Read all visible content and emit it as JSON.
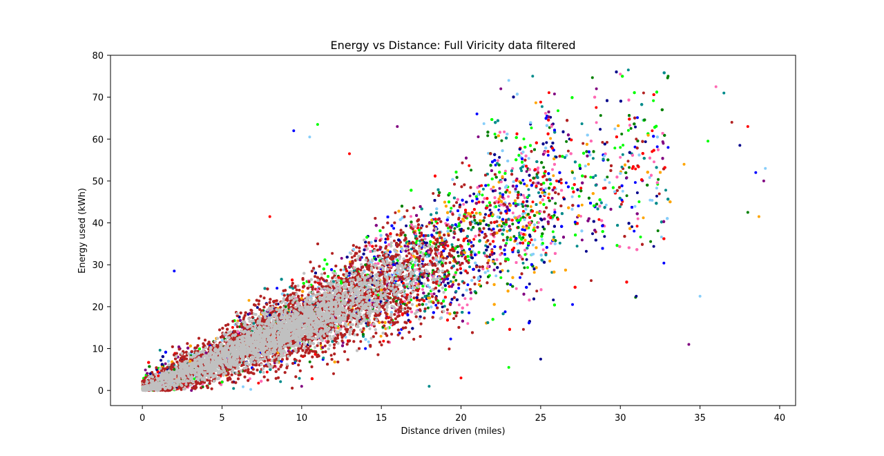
{
  "chart_data": {
    "type": "scatter",
    "title": "Energy vs Distance: Full Viricity data filtered",
    "xlabel": "Distance driven (miles)",
    "ylabel": "Energy used (kWh)",
    "xlim": [
      -2,
      41
    ],
    "ylim": [
      -3.6,
      80
    ],
    "xticks": [
      0,
      5,
      10,
      15,
      20,
      25,
      30,
      35,
      40
    ],
    "yticks": [
      0,
      10,
      20,
      30,
      40,
      50,
      60,
      70,
      80
    ],
    "grid": false,
    "legend": "none",
    "marker_colors": [
      "#c0c0c0",
      "#b22222",
      "#00008b",
      "#ff0000",
      "#008000",
      "#0000ff",
      "#ffa500",
      "#800080",
      "#87cefa",
      "#00ff00",
      "#ff69b4",
      "#008b8b"
    ],
    "dense_core_color": "#c0c0c0",
    "trend_slope_kwh_per_mile": 1.7,
    "sample_points": [
      [
        0.1,
        2.0
      ],
      [
        0.5,
        4.0
      ],
      [
        1.0,
        3.5
      ],
      [
        2.0,
        5.0
      ],
      [
        2.0,
        28.5
      ],
      [
        3.0,
        7.0
      ],
      [
        4.0,
        9.0
      ],
      [
        5.0,
        12.0
      ],
      [
        5.0,
        2.0
      ],
      [
        6.0,
        14.0
      ],
      [
        7.0,
        16.0
      ],
      [
        7.0,
        4.0
      ],
      [
        8.0,
        18.0
      ],
      [
        8.0,
        41.5
      ],
      [
        9.0,
        20.0
      ],
      [
        9.5,
        62.0
      ],
      [
        10.0,
        22.0
      ],
      [
        10.0,
        1.0
      ],
      [
        10.5,
        60.5
      ],
      [
        11.0,
        63.5
      ],
      [
        11.0,
        24.0
      ],
      [
        12.0,
        26.0
      ],
      [
        12.0,
        4.0
      ],
      [
        13.0,
        28.0
      ],
      [
        13.0,
        56.5
      ],
      [
        14.0,
        30.0
      ],
      [
        14.0,
        10.0
      ],
      [
        15.0,
        24.0
      ],
      [
        16.0,
        63.0
      ],
      [
        16.0,
        28.0
      ],
      [
        17.0,
        30.0
      ],
      [
        18.0,
        33.0
      ],
      [
        18.0,
        1.0
      ],
      [
        19.0,
        35.0
      ],
      [
        20.0,
        38.0
      ],
      [
        20.0,
        3.0
      ],
      [
        21.0,
        40.0
      ],
      [
        21.0,
        66.0
      ],
      [
        22.0,
        42.0
      ],
      [
        22.5,
        72.0
      ],
      [
        23.0,
        74.0
      ],
      [
        23.0,
        5.5
      ],
      [
        24.0,
        46.0
      ],
      [
        24.5,
        75.0
      ],
      [
        25.0,
        48.0
      ],
      [
        25.0,
        7.5
      ],
      [
        26.0,
        50.0
      ],
      [
        27.0,
        52.0
      ],
      [
        27.0,
        20.5
      ],
      [
        28.0,
        54.0
      ],
      [
        28.5,
        72.0
      ],
      [
        29.0,
        56.0
      ],
      [
        30.0,
        58.0
      ],
      [
        30.0,
        75.5
      ],
      [
        30.5,
        76.5
      ],
      [
        31.0,
        60.0
      ],
      [
        31.0,
        22.5
      ],
      [
        32.0,
        62.0
      ],
      [
        33.0,
        75.0
      ],
      [
        33.0,
        58.0
      ],
      [
        34.0,
        54.0
      ],
      [
        34.3,
        11.0
      ],
      [
        35.0,
        22.5
      ],
      [
        35.5,
        59.5
      ],
      [
        36.0,
        72.5
      ],
      [
        36.5,
        71.0
      ],
      [
        37.0,
        64.0
      ],
      [
        37.5,
        58.5
      ],
      [
        38.0,
        63.0
      ],
      [
        38.0,
        42.5
      ],
      [
        38.5,
        52.0
      ],
      [
        38.7,
        41.5
      ],
      [
        39.0,
        50.0
      ],
      [
        39.1,
        53.0
      ]
    ]
  }
}
